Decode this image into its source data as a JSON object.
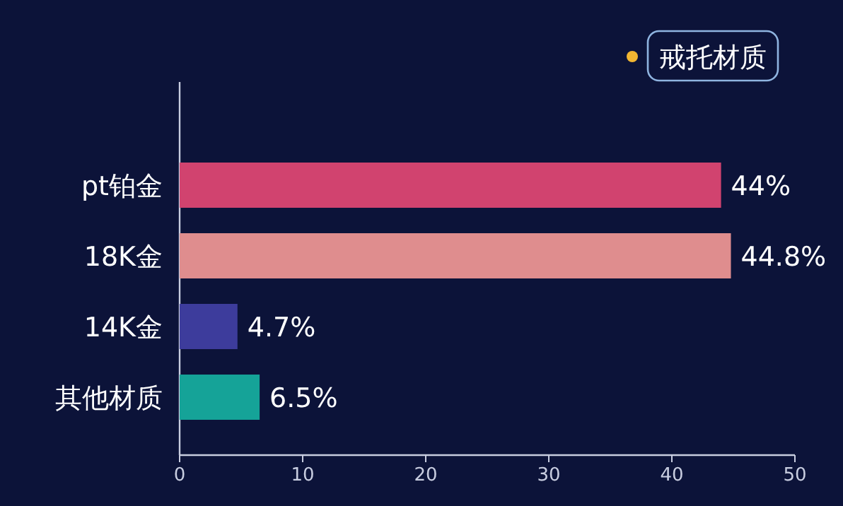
{
  "chart_data": {
    "type": "bar",
    "orientation": "horizontal",
    "categories": [
      "pt铂金",
      "18K金",
      "14K金",
      "其他材质"
    ],
    "series": [
      {
        "name": "戒托材质",
        "color": "#f2b632",
        "colors": [
          "#d1436f",
          "#df8d8e",
          "#3d3c9c",
          "#15a398"
        ],
        "values": [
          44,
          44.8,
          4.7,
          6.5
        ]
      }
    ],
    "value_labels": [
      "44%",
      "44.8%",
      "4.7%",
      "6.5%"
    ],
    "xlim": [
      0,
      50
    ],
    "xticks": [
      0,
      10,
      20,
      30,
      40,
      50
    ],
    "legend": "top right",
    "grid": false
  }
}
